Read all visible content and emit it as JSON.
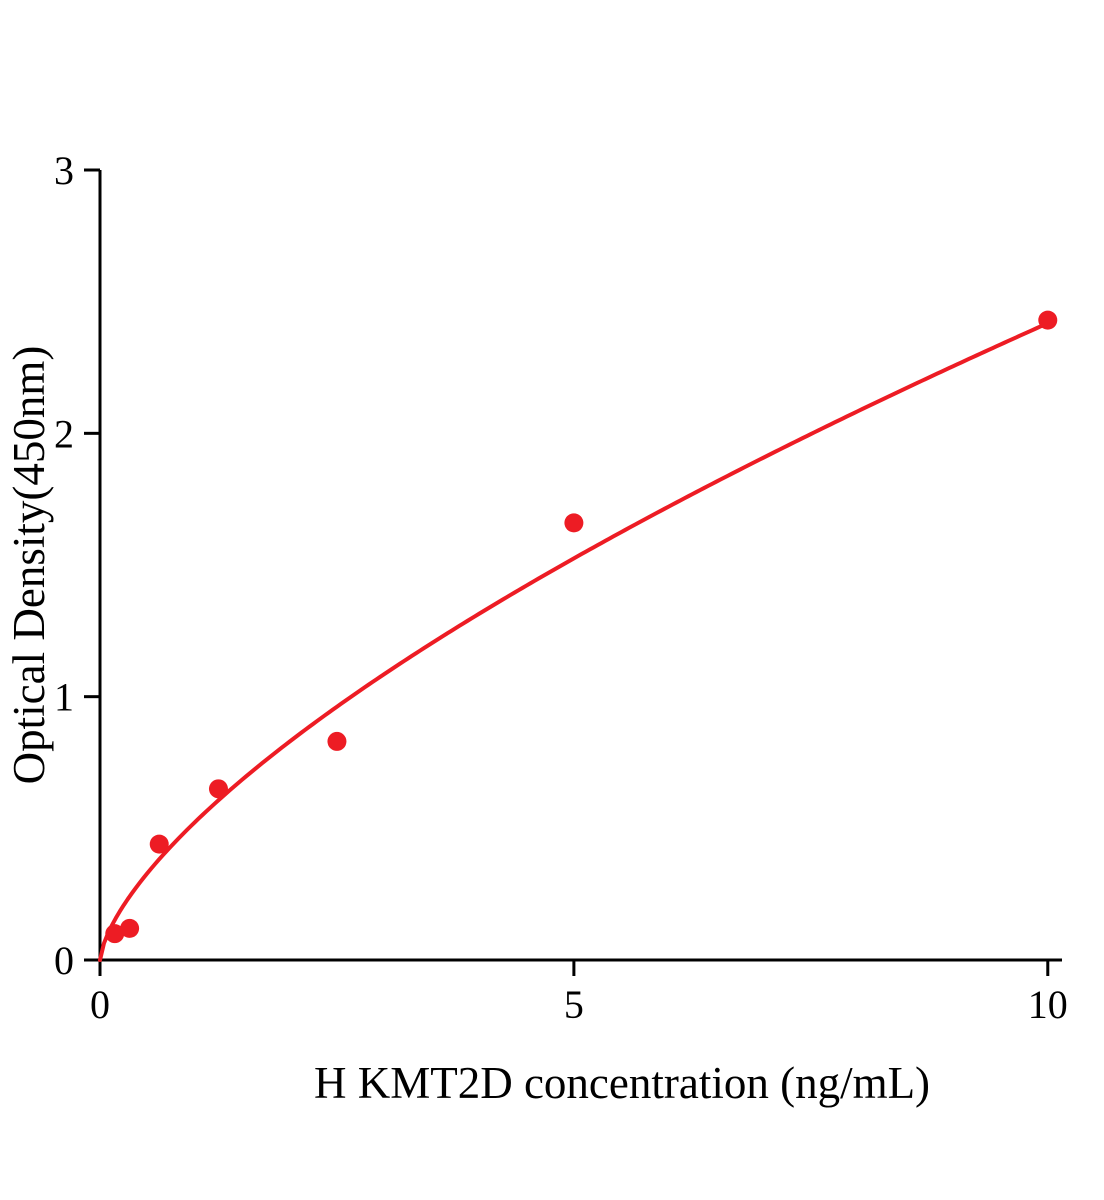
{
  "chart_data": {
    "type": "scatter",
    "title": "",
    "xlabel": "H KMT2D concentration (ng/mL)",
    "ylabel": "Optical Density(450nm)",
    "xlim": [
      0,
      10.15
    ],
    "ylim": [
      0,
      3
    ],
    "xticks": [
      "0",
      "5",
      "10"
    ],
    "xtick_values": [
      0,
      5,
      10
    ],
    "yticks": [
      "0",
      "1",
      "2",
      "3"
    ],
    "ytick_values": [
      0,
      1,
      2,
      3
    ],
    "grid": false,
    "legend": null,
    "points": [
      {
        "x": 0.156,
        "y": 0.1
      },
      {
        "x": 0.3125,
        "y": 0.12
      },
      {
        "x": 0.625,
        "y": 0.44
      },
      {
        "x": 1.25,
        "y": 0.65
      },
      {
        "x": 2.5,
        "y": 0.83
      },
      {
        "x": 5,
        "y": 1.66
      },
      {
        "x": 10,
        "y": 2.43
      }
    ],
    "fit_curve": {
      "type": "power",
      "a": 0.523,
      "b": 0.665,
      "x_start": 0.0,
      "x_end": 10
    },
    "marker_color": "#ed1c24",
    "line_color": "#ed1c24",
    "axis_color": "#000000"
  }
}
